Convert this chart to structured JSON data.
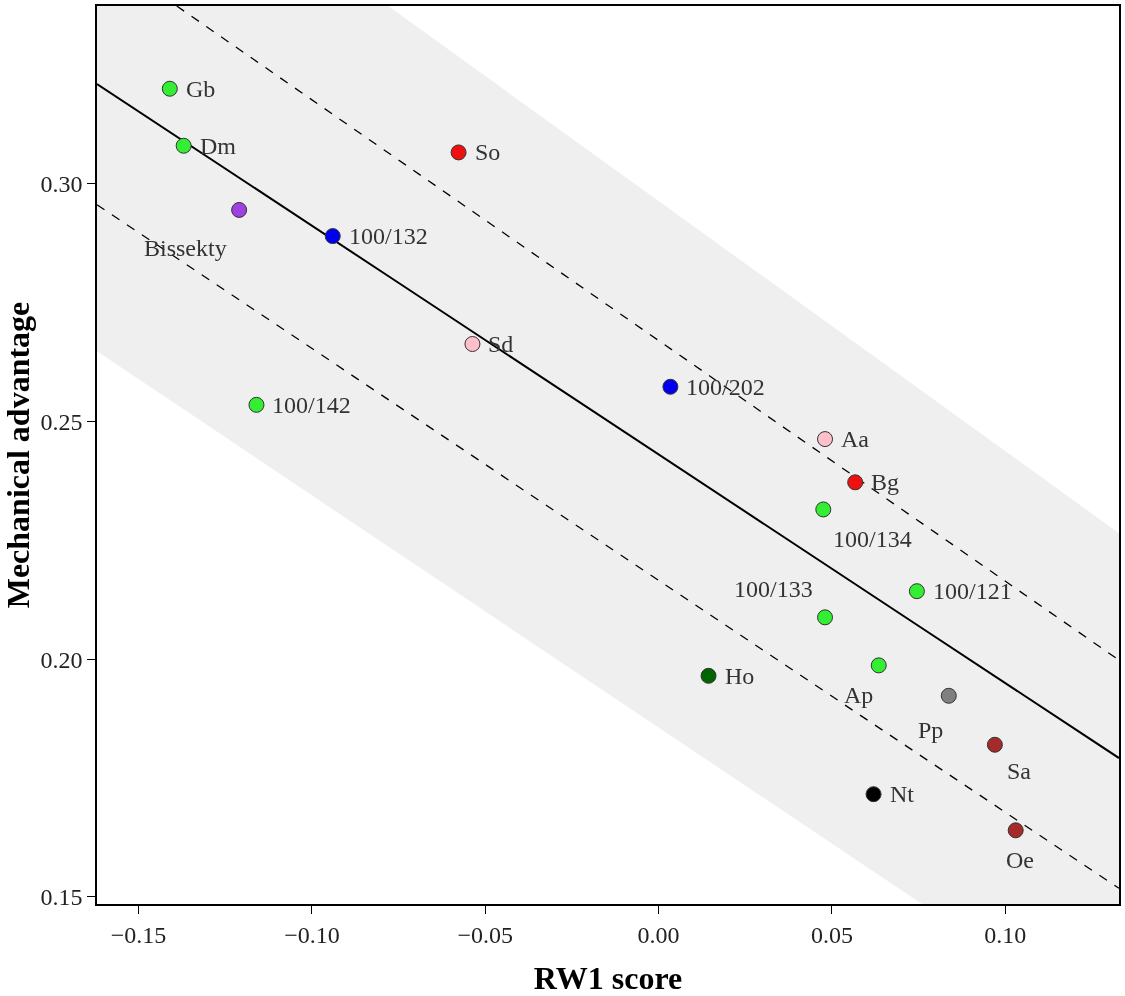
{
  "chart_data": {
    "type": "scatter",
    "xlabel": "RW1 score",
    "ylabel": "Mechanical advantage",
    "xlim": [
      -0.162,
      0.1328
    ],
    "ylim": [
      0.1485,
      0.3374
    ],
    "xticks": [
      {
        "value": -0.15,
        "label": "−0.15"
      },
      {
        "value": -0.1,
        "label": "−0.10"
      },
      {
        "value": -0.05,
        "label": "−0.05"
      },
      {
        "value": 0,
        "label": "0.00"
      },
      {
        "value": 0.05,
        "label": "0.05"
      },
      {
        "value": 0.1,
        "label": "0.10"
      }
    ],
    "yticks": [
      {
        "value": 0.15,
        "label": "0.15"
      },
      {
        "value": 0.2,
        "label": "0.20"
      },
      {
        "value": 0.25,
        "label": "0.25"
      },
      {
        "value": 0.3,
        "label": "0.30"
      }
    ],
    "series": [
      {
        "type": "line",
        "color": "#000000",
        "line_style": "solid",
        "x": [
          -0.162,
          -0.078,
          0.076,
          0.1328
        ],
        "values": [
          0.321,
          0.2806,
          0.2065,
          0.1792
        ],
        "lower": [
          0.2648,
          0.2237,
          0.1485,
          0.1485
        ],
        "upper": [
          0.3374,
          0.3374,
          0.2564,
          0.2265
        ]
      },
      {
        "type": "line",
        "color": "#000000",
        "line_style": "dashed",
        "x": [
          -0.139,
          0.1328
        ],
        "values": [
          0.3374,
          0.1998
        ]
      },
      {
        "type": "line",
        "color": "#000000",
        "line_style": "dashed",
        "x": [
          -0.162,
          0.1328
        ],
        "values": [
          0.2956,
          0.1518
        ]
      },
      {
        "marker": "circle",
        "x": [
          -0.141,
          -0.137,
          -0.121,
          -0.094,
          -0.0577,
          -0.0537,
          -0.116,
          0.0034,
          0.048,
          0.0567,
          0.0475,
          0.0745,
          0.048,
          0.0144,
          0.0635,
          0.0837,
          0.097,
          0.062,
          0.103
        ],
        "values": [
          0.32,
          0.308,
          0.2945,
          0.289,
          0.3066,
          0.2663,
          0.2535,
          0.2573,
          0.2463,
          0.2372,
          0.2315,
          0.2143,
          0.2088,
          0.1965,
          0.1987,
          0.1923,
          0.182,
          0.1716,
          0.164
        ],
        "colors": [
          "#33ee33",
          "#33ee33",
          "#a040e0",
          "#0000ee",
          "#ee1111",
          "#ffc0cb",
          "#33ee33",
          "#0000ee",
          "#ffc0cb",
          "#ee1111",
          "#33ee33",
          "#33ee33",
          "#33ee33",
          "#006400",
          "#33ee33",
          "#808080",
          "#a52a2a",
          "#000000",
          "#a52a2a"
        ]
      }
    ],
    "annotations": [
      {
        "text": "Gb",
        "x": -0.141,
        "y": 0.32
      },
      {
        "text": "Dm",
        "x": -0.137,
        "y": 0.308
      },
      {
        "text": "Bissekty",
        "x": -0.121,
        "y": 0.2945
      },
      {
        "text": "100/132",
        "x": -0.094,
        "y": 0.289
      },
      {
        "text": "So",
        "x": -0.0577,
        "y": 0.3066
      },
      {
        "text": "Sd",
        "x": -0.0537,
        "y": 0.2663
      },
      {
        "text": "100/142",
        "x": -0.116,
        "y": 0.2535
      },
      {
        "text": "100/202",
        "x": 0.0034,
        "y": 0.2573
      },
      {
        "text": "Aa",
        "x": 0.048,
        "y": 0.2463
      },
      {
        "text": "Bg",
        "x": 0.0567,
        "y": 0.2372
      },
      {
        "text": "100/134",
        "x": 0.0475,
        "y": 0.2315
      },
      {
        "text": "100/121",
        "x": 0.0745,
        "y": 0.2143
      },
      {
        "text": "100/133",
        "x": 0.048,
        "y": 0.2088
      },
      {
        "text": "Ho",
        "x": 0.0144,
        "y": 0.1965
      },
      {
        "text": "Ap",
        "x": 0.0635,
        "y": 0.1987
      },
      {
        "text": "Pp",
        "x": 0.0837,
        "y": 0.1923
      },
      {
        "text": "Sa",
        "x": 0.097,
        "y": 0.182
      },
      {
        "text": "Nt",
        "x": 0.062,
        "y": 0.1716
      },
      {
        "text": "Oe",
        "x": 0.103,
        "y": 0.164
      }
    ]
  }
}
